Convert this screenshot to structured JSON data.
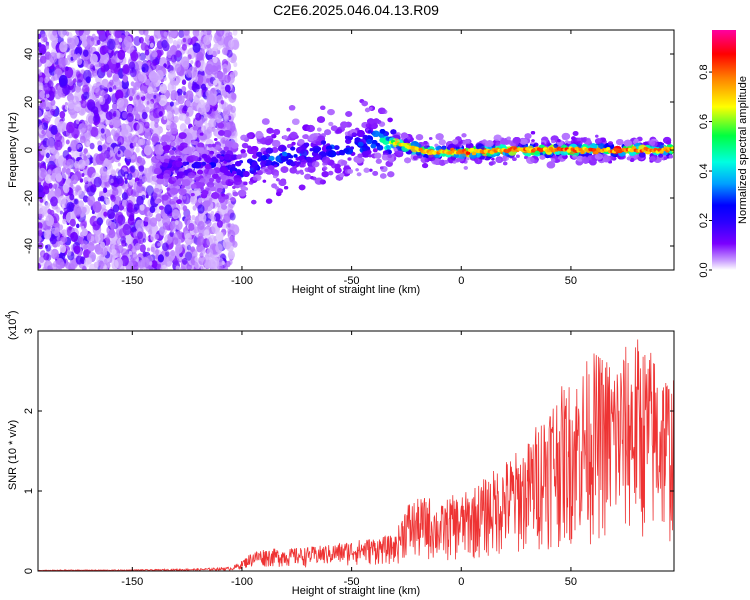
{
  "title": "C2E6.2025.046.04.13.R09",
  "chart_data": [
    {
      "type": "heatmap",
      "title": "C2E6.2025.046.04.13.R09",
      "xlabel": "Height of straight line (km)",
      "ylabel": "Frequency (Hz)",
      "xlim": [
        -193,
        97
      ],
      "ylim": [
        -50,
        50
      ],
      "x_ticks": [
        -150,
        -100,
        -50,
        0,
        50
      ],
      "y_ticks": [
        -40,
        -20,
        0,
        20,
        40
      ],
      "colorbar": {
        "label": "Normalized spectral amplitude",
        "range": [
          0,
          0.97
        ],
        "ticks": [
          0.0,
          0.2,
          0.4,
          0.6,
          0.8
        ],
        "tick_labels": [
          "0.0",
          "0.2",
          "0.4",
          "0.6",
          "0.8"
        ],
        "colormap": [
          "#ffffff",
          "#c89bff",
          "#7a00ff",
          "#2b00ff",
          "#0000ff",
          "#00a0ff",
          "#00ffe0",
          "#00ff40",
          "#ffff00",
          "#ff8000",
          "#ff0000",
          "#ff00a0"
        ]
      },
      "ridge": [
        {
          "x": -135,
          "freq": -8,
          "amp": 0.2
        },
        {
          "x": -110,
          "freq": -5,
          "amp": 0.25
        },
        {
          "x": -100,
          "freq": -8,
          "amp": 0.3
        },
        {
          "x": -90,
          "freq": -4,
          "amp": 0.3
        },
        {
          "x": -75,
          "freq": -2,
          "amp": 0.3
        },
        {
          "x": -60,
          "freq": 0,
          "amp": 0.3
        },
        {
          "x": -45,
          "freq": 2,
          "amp": 0.35
        },
        {
          "x": -40,
          "freq": 5,
          "amp": 0.45
        },
        {
          "x": -30,
          "freq": 3,
          "amp": 0.7
        },
        {
          "x": -15,
          "freq": -1,
          "amp": 0.8
        },
        {
          "x": 0,
          "freq": -1,
          "amp": 0.85
        },
        {
          "x": 25,
          "freq": 0,
          "amp": 0.85
        },
        {
          "x": 50,
          "freq": 0,
          "amp": 0.85
        },
        {
          "x": 75,
          "freq": 0,
          "amp": 0.85
        },
        {
          "x": 97,
          "freq": 0,
          "amp": 0.8
        }
      ]
    },
    {
      "type": "line",
      "xlabel": "Height of straight line (km)",
      "ylabel": "SNR (10 * v/v)",
      "y_multiplier": "(x10^4)",
      "xlim": [
        -193,
        97
      ],
      "ylim": [
        0,
        3
      ],
      "x_ticks": [
        -150,
        -100,
        -50,
        0,
        50
      ],
      "y_ticks": [
        0,
        1,
        2,
        3
      ],
      "series": [
        {
          "color": "#ee3333",
          "x": [
            -193,
            -180,
            -160,
            -140,
            -120,
            -105,
            -100,
            -95,
            -90,
            -80,
            -70,
            -60,
            -50,
            -40,
            -30,
            -25,
            -20,
            -15,
            -10,
            -5,
            0,
            10,
            20,
            30,
            40,
            50,
            60,
            70,
            80,
            90,
            97
          ],
          "envelope": [
            0.01,
            0.015,
            0.015,
            0.02,
            0.03,
            0.05,
            0.13,
            0.25,
            0.28,
            0.28,
            0.3,
            0.33,
            0.38,
            0.42,
            0.45,
            0.88,
            0.9,
            0.95,
            0.8,
            0.95,
            0.95,
            1.15,
            1.4,
            1.6,
            2.2,
            2.4,
            2.75,
            2.7,
            2.95,
            2.7,
            2.4
          ]
        }
      ]
    }
  ]
}
